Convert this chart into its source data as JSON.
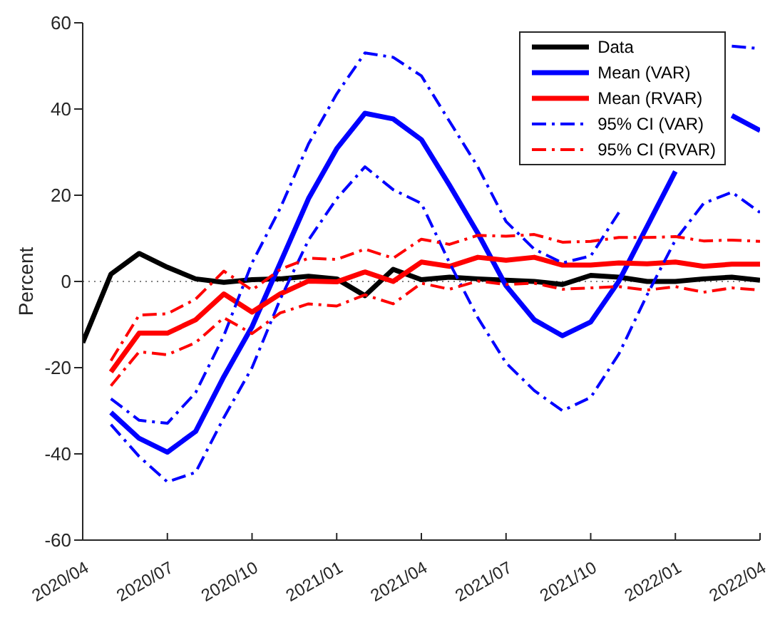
{
  "chart_data": {
    "type": "line",
    "ylabel": "Percent",
    "x": [
      "2020-04",
      "2020-05",
      "2020-06",
      "2020-07",
      "2020-08",
      "2020-09",
      "2020-10",
      "2020-11",
      "2020-12",
      "2021-01",
      "2021-02",
      "2021-03",
      "2021-04",
      "2021-05",
      "2021-06",
      "2021-07",
      "2021-08",
      "2021-09",
      "2021-10",
      "2021-11",
      "2021-12",
      "2022-01",
      "2022-02",
      "2022-03",
      "2022-04"
    ],
    "series": [
      {
        "name": "Data",
        "color": "#000000",
        "line_style": "solid",
        "values": [
          -14.2,
          1.7,
          6.5,
          3.3,
          0.6,
          -0.2,
          0.4,
          0.6,
          1.2,
          0.6,
          -3.3,
          2.8,
          0.4,
          1,
          0.6,
          0.3,
          0,
          -0.7,
          1.4,
          1,
          0,
          0,
          0.6,
          1,
          0.3
        ]
      },
      {
        "name": "Mean (VAR)",
        "color": "#0000ff",
        "line_style": "solid",
        "values": [
          null,
          -30.4,
          -36.4,
          -39.6,
          -34.8,
          -22.1,
          -10.5,
          4.3,
          19.2,
          30.8,
          39,
          37.7,
          32.9,
          22.3,
          11.2,
          -1,
          -8.9,
          -12.6,
          -9.4,
          0.1,
          12.8,
          25.5,
          null,
          38.5,
          35
        ]
      },
      {
        "name": "Mean (RVAR)",
        "color": "#ff0000",
        "line_style": "solid",
        "values": [
          null,
          -21,
          -12,
          -12,
          -8.9,
          -2.9,
          -7.1,
          -2.9,
          0.1,
          -0.1,
          2.2,
          0,
          4.5,
          3.5,
          5.6,
          4.9,
          5.6,
          3.8,
          3.8,
          4.3,
          4.1,
          4.5,
          3.5,
          4,
          4
        ]
      },
      {
        "name": "95% CI (VAR)",
        "color": "#0000ff",
        "line_style": "dashed",
        "values": [
          null,
          -27.2,
          -32.2,
          -32.9,
          -25.8,
          -12.6,
          4.3,
          17,
          31.9,
          43.5,
          53,
          52,
          47.7,
          37.1,
          26.6,
          13.9,
          7.5,
          4.3,
          5.9,
          16,
          null,
          null,
          null,
          54.6,
          54
        ]
      },
      {
        "color": "#0000ff",
        "line_style": "dashed",
        "values": [
          null,
          -33.2,
          -40.6,
          -46.5,
          -44.3,
          -31.6,
          -20,
          -4.1,
          9.6,
          19.2,
          26.6,
          21.3,
          18.1,
          4.3,
          -8.4,
          -18.9,
          -25.3,
          -30,
          -26.9,
          -16.8,
          -3.1,
          9.6,
          18.1,
          20.7,
          16
        ]
      },
      {
        "name": "95% CI (RVAR)",
        "color": "#ff0000",
        "line_style": "dashed",
        "values": [
          null,
          -18.4,
          -7.8,
          -7.5,
          -4.1,
          2.4,
          -2,
          2.8,
          5.4,
          5.1,
          7.5,
          5.4,
          9.8,
          8.6,
          10.7,
          10.5,
          10.9,
          9.1,
          9.3,
          10.2,
          10.2,
          10.4,
          9.4,
          9.6,
          9.3
        ]
      },
      {
        "color": "#ff0000",
        "line_style": "dashed",
        "values": [
          null,
          -24.2,
          -16.3,
          -17,
          -14.2,
          -8.4,
          -12.1,
          -7.3,
          -5.2,
          -5.7,
          -3.1,
          -5.2,
          -0.4,
          -1.8,
          0.1,
          -0.7,
          -0.4,
          -1.8,
          -1.5,
          -1.2,
          -2,
          -1.2,
          -2.5,
          -1.5,
          -2
        ]
      }
    ],
    "xlim": [
      "2020-04",
      "2022-04"
    ],
    "xticks": [
      {
        "value": "2020-04",
        "label": "2020/04"
      },
      {
        "value": "2020-07",
        "label": "2020/07"
      },
      {
        "value": "2020-10",
        "label": "2020/10"
      },
      {
        "value": "2021-01",
        "label": "2021/01"
      },
      {
        "value": "2021-04",
        "label": "2021/04"
      },
      {
        "value": "2021-07",
        "label": "2021/07"
      },
      {
        "value": "2021-10",
        "label": "2021/10"
      },
      {
        "value": "2022-01",
        "label": "2022/01"
      },
      {
        "value": "2022-04",
        "label": "2022/04"
      }
    ],
    "ylim": [
      -60,
      60
    ],
    "yticks": [
      -60,
      -40,
      -20,
      0,
      20,
      40,
      60
    ],
    "ref_lines": [
      {
        "axis": "y",
        "value": 0,
        "color": "#808080",
        "line_style": "dotted"
      }
    ],
    "grid": false,
    "legend": "top right",
    "marker": "none"
  }
}
